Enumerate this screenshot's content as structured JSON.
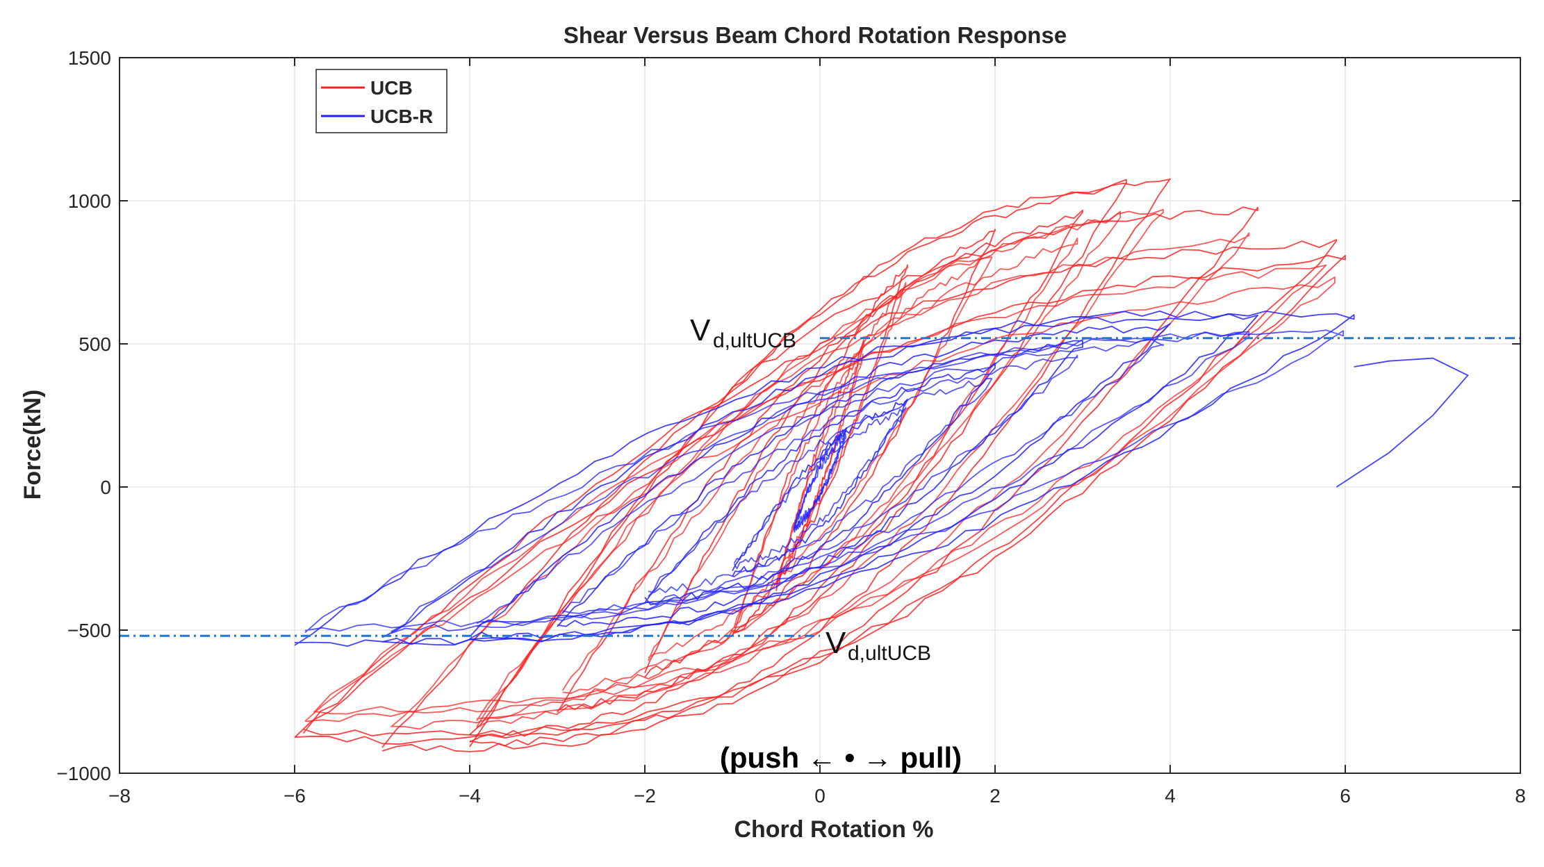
{
  "chart_data": {
    "type": "line",
    "title": "Shear Versus Beam Chord Rotation Response",
    "xlabel": "Chord Rotation %",
    "ylabel": "Force(kN)",
    "xlim": [
      -8,
      8
    ],
    "ylim": [
      -1000,
      1500
    ],
    "xticks": [
      -8,
      -6,
      -4,
      -2,
      0,
      2,
      4,
      6,
      8
    ],
    "yticks": [
      -1000,
      -500,
      0,
      500,
      1000,
      1500
    ],
    "xtick_labels": [
      "−8",
      "−6",
      "−4",
      "−2",
      "0",
      "2",
      "4",
      "6",
      "8"
    ],
    "ytick_labels": [
      "−1000",
      "−500",
      "0",
      "500",
      "1000",
      "1500"
    ],
    "grid": true,
    "legend_position": "top-left",
    "annotation": "(push ← • → pull)",
    "reference_lines": [
      {
        "label_main": "V",
        "label_sub": "d,ultUCB",
        "y": 520,
        "x_range": [
          0,
          8
        ],
        "color": "#1f77d4",
        "style": "dash-dot"
      },
      {
        "label_main": "V",
        "label_sub": "d,ultUCB",
        "y": -520,
        "x_range": [
          -8,
          0
        ],
        "color": "#1f77d4",
        "style": "dash-dot"
      }
    ],
    "series": [
      {
        "name": "UCB",
        "color": "#ff2020",
        "loops": [
          {
            "pos": [
              0.5,
              500
            ],
            "neg": [
              -0.5,
              -350
            ],
            "pos_mid": 60,
            "neg_mid": -60
          },
          {
            "pos": [
              1,
              780
            ],
            "neg": [
              -1,
              -520
            ],
            "pos_mid": 120,
            "neg_mid": -140
          },
          {
            "pos": [
              2,
              900
            ],
            "neg": [
              -2,
              -650
            ],
            "pos_mid": 200,
            "neg_mid": -250
          },
          {
            "pos": [
              3,
              960
            ],
            "neg": [
              -3,
              -780
            ],
            "pos_mid": 260,
            "neg_mid": -320
          },
          {
            "pos": [
              3.5,
              1060
            ],
            "neg": [
              -4,
              -880
            ],
            "pos_mid": 330,
            "neg_mid": -380
          },
          {
            "pos": [
              4,
              1080
            ],
            "neg": [
              -4,
              -900
            ],
            "pos_mid": 380,
            "neg_mid": -420
          },
          {
            "pos": [
              5,
              970
            ],
            "neg": [
              -5,
              -910
            ],
            "pos_mid": 380,
            "neg_mid": -440
          },
          {
            "pos": [
              5.9,
              850
            ],
            "neg": [
              -5.9,
              -850
            ],
            "pos_mid": 350,
            "neg_mid": -420
          },
          {
            "pos": [
              6,
              800
            ],
            "neg": [
              -6,
              -880
            ],
            "pos_mid": 300,
            "neg_mid": -400
          }
        ]
      },
      {
        "name": "UCB-R",
        "color": "#2020ff",
        "loops": [
          {
            "pos": [
              0.3,
              200
            ],
            "neg": [
              -0.3,
              -150
            ],
            "pos_mid": 40,
            "neg_mid": -40
          },
          {
            "pos": [
              1,
              300
            ],
            "neg": [
              -1,
              -300
            ],
            "pos_mid": 80,
            "neg_mid": -100
          },
          {
            "pos": [
              2,
              420
            ],
            "neg": [
              -2,
              -400
            ],
            "pos_mid": 130,
            "neg_mid": -160
          },
          {
            "pos": [
              3,
              500
            ],
            "neg": [
              -3,
              -480
            ],
            "pos_mid": 180,
            "neg_mid": -200
          },
          {
            "pos": [
              4,
              560
            ],
            "neg": [
              -4,
              -520
            ],
            "pos_mid": 220,
            "neg_mid": -240
          },
          {
            "pos": [
              5,
              590
            ],
            "neg": [
              -5,
              -540
            ],
            "pos_mid": 260,
            "neg_mid": -260
          },
          {
            "pos": [
              6.1,
              600
            ],
            "neg": [
              -6,
              -540
            ],
            "pos_mid": 280,
            "neg_mid": -270
          }
        ],
        "tail": [
          [
            6.1,
            420
          ],
          [
            6.5,
            440
          ],
          [
            7,
            450
          ],
          [
            7.4,
            390
          ],
          [
            7,
            250
          ],
          [
            6.5,
            120
          ],
          [
            5.9,
            0
          ]
        ]
      }
    ]
  }
}
